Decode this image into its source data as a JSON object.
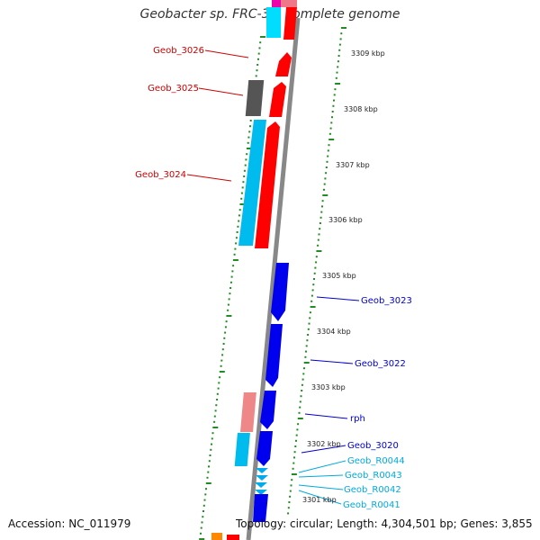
{
  "title": "Geobacter sp. FRC-32, complete genome",
  "footer": {
    "accession": "Accession: NC_011979",
    "summary": "Topology: circular; Length: 4,304,501 bp; Genes: 3,855"
  },
  "scale": {
    "ticks": [
      "3309 kbp",
      "3308 kbp",
      "3307 kbp",
      "3306 kbp",
      "3305 kbp",
      "3304 kbp",
      "3303 kbp",
      "3302 kbp",
      "3301 kbp"
    ]
  },
  "genes": {
    "labels": [
      "Geob_3026",
      "Geob_3025",
      "Geob_3024",
      "Geob_3023",
      "Geob_3022",
      "rph",
      "Geob_3020",
      "Geob_R0044",
      "Geob_R0043",
      "Geob_R0042",
      "Geob_R0041"
    ]
  },
  "colors": {
    "cds_forward": "#ff0000",
    "cds_reverse": "#0000ee",
    "forward_track": "#00ccff",
    "grey_feature": "#555555",
    "rna": "#00aaee",
    "pink": "#ee8888",
    "backbone": "#888888",
    "tick_green": "#228b22",
    "label_red": "#cc0000",
    "label_blue": "#0000cc",
    "label_cyan": "#00aadd"
  }
}
